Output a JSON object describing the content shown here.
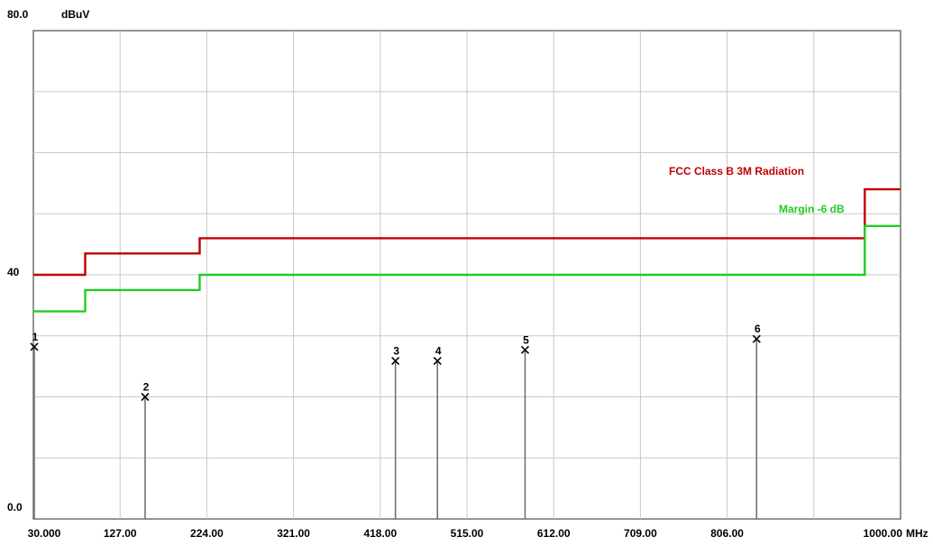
{
  "chart_data": {
    "type": "line",
    "y_unit": "dBuV",
    "x_unit": "MHz",
    "ylim": [
      0,
      80
    ],
    "y_ticks": [
      {
        "value": 80,
        "label": "80.0"
      },
      {
        "value": 40,
        "label": "40"
      },
      {
        "value": 0,
        "label": "0.0"
      }
    ],
    "xlim": [
      30,
      1000
    ],
    "x_ticks": [
      {
        "value": 30,
        "label": "30.000"
      },
      {
        "value": 127,
        "label": "127.00"
      },
      {
        "value": 224,
        "label": "224.00"
      },
      {
        "value": 321,
        "label": "321.00"
      },
      {
        "value": 418,
        "label": "418.00"
      },
      {
        "value": 515,
        "label": "515.00"
      },
      {
        "value": 612,
        "label": "612.00"
      },
      {
        "value": 709,
        "label": "709.00"
      },
      {
        "value": 806,
        "label": "806.00"
      },
      {
        "value": 1000,
        "label": "1000.00"
      }
    ],
    "grid": true,
    "limit_lines": [
      {
        "name": "FCC Class B 3M Radiation",
        "color": "#c00000",
        "points": [
          [
            30,
            40
          ],
          [
            88,
            40
          ],
          [
            88,
            43.5
          ],
          [
            216,
            43.5
          ],
          [
            216,
            46
          ],
          [
            960,
            46
          ],
          [
            960,
            54
          ],
          [
            1000,
            54
          ]
        ]
      },
      {
        "name": "Margin -6 dB",
        "color": "#22cc22",
        "points": [
          [
            30,
            34
          ],
          [
            88,
            34
          ],
          [
            88,
            37.5
          ],
          [
            216,
            37.5
          ],
          [
            216,
            40
          ],
          [
            960,
            40
          ],
          [
            960,
            48
          ],
          [
            1000,
            48
          ]
        ]
      }
    ],
    "markers": [
      {
        "label": "1",
        "x": 31.0,
        "y": 28.2
      },
      {
        "label": "2",
        "x": 155.0,
        "y": 20.0
      },
      {
        "label": "3",
        "x": 435.0,
        "y": 25.9
      },
      {
        "label": "4",
        "x": 482.0,
        "y": 25.9
      },
      {
        "label": "5",
        "x": 580.0,
        "y": 27.7
      },
      {
        "label": "6",
        "x": 839.0,
        "y": 29.5
      }
    ]
  }
}
